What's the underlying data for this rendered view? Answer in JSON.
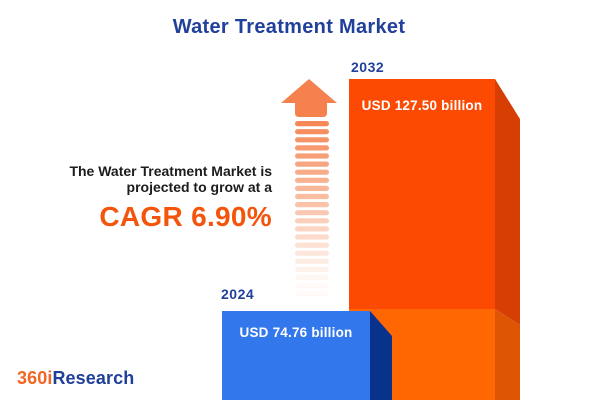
{
  "title": "Water Treatment Market",
  "annotation": {
    "line1": "The Water Treatment Market is",
    "line2": "projected to grow at a",
    "cagr": "CAGR 6.90%"
  },
  "logo": {
    "prefix": "360i",
    "suffix": "Research"
  },
  "colors": {
    "title_blue": "#21409B",
    "accent_orange": "#F4540B",
    "text_dark": "#1C1C1C",
    "bar_2024_face": "#3377EC",
    "bar_2024_side": "#08328C",
    "bar_2032_face_top": "#FC4A03",
    "bar_2032_face_bottom": "#FF6702",
    "bar_2032_side_top": "#D63E04",
    "bar_2032_side_bottom": "#DE5504",
    "arrow_orange": "#F5824E",
    "logo_orange": "#F26522"
  },
  "chart_data": {
    "type": "bar",
    "title": "Water Treatment Market",
    "unit": "USD billion",
    "orientation": "vertical",
    "legend": "none",
    "categories": [
      "2024",
      "2032"
    ],
    "values": [
      74.76,
      127.5
    ],
    "cagr_percent": 6.9,
    "bars": [
      {
        "year": "2024",
        "value": 74.76,
        "label": "USD 74.76 billion"
      },
      {
        "year": "2032",
        "value": 127.5,
        "label": "USD 127.50 billion"
      }
    ],
    "annotation": "The Water Treatment Market is projected to grow at a CAGR 6.90%"
  }
}
